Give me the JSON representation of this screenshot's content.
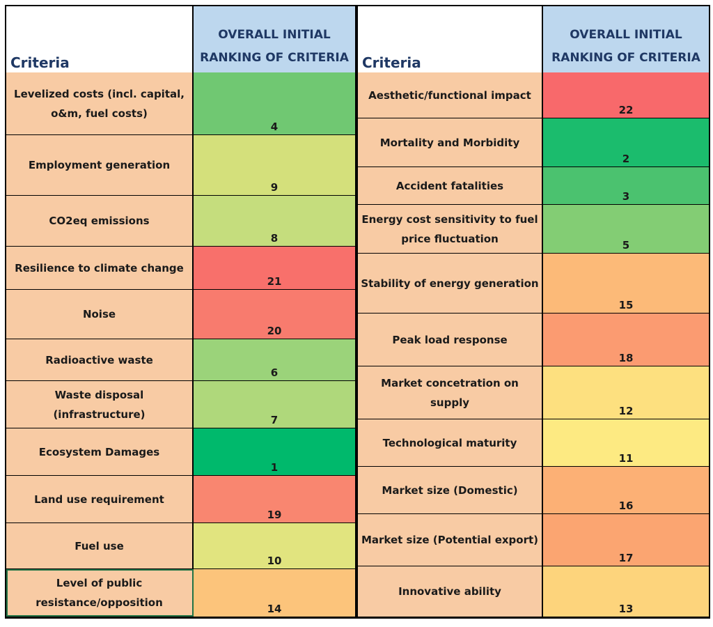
{
  "headers": {
    "criteria": "Criteria",
    "ranking": "OVERALL INITIAL RANKING OF CRITERIA"
  },
  "left_rows": [
    {
      "criteria": "Levelized costs (incl. capital, o&m, fuel costs)",
      "rank": "4",
      "color": "#70c872"
    },
    {
      "criteria": "Employment generation",
      "rank": "9",
      "color": "#d4e07b"
    },
    {
      "criteria": "CO2eq emissions",
      "rank": "8",
      "color": "#c5dd7d"
    },
    {
      "criteria": "Resilience to climate change",
      "rank": "21",
      "color": "#f8706b"
    },
    {
      "criteria": "Noise",
      "rank": "20",
      "color": "#f87b6e"
    },
    {
      "criteria": "Radioactive waste",
      "rank": "6",
      "color": "#9bd37a"
    },
    {
      "criteria": "Waste disposal (infrastructure)",
      "rank": "7",
      "color": "#afd87b"
    },
    {
      "criteria": "Ecosystem Damages",
      "rank": "1",
      "color": "#00b96c"
    },
    {
      "criteria": "Land use requirement",
      "rank": "19",
      "color": "#f98670"
    },
    {
      "criteria": "Fuel use",
      "rank": "10",
      "color": "#e1e47f"
    },
    {
      "criteria": "Level of public resistance/opposition",
      "rank": "14",
      "color": "#fcc47b"
    }
  ],
  "right_rows": [
    {
      "criteria": "Aesthetic/functional impact",
      "rank": "22",
      "color": "#f8696b"
    },
    {
      "criteria": "Mortality and Morbidity",
      "rank": "2",
      "color": "#1bbc6d"
    },
    {
      "criteria": "Accident fatalities",
      "rank": "3",
      "color": "#4bc26f"
    },
    {
      "criteria": "Energy cost sensitivity to fuel price fluctuation",
      "rank": "5",
      "color": "#83cd74"
    },
    {
      "criteria": "Stability of energy generation",
      "rank": "15",
      "color": "#fcba78"
    },
    {
      "criteria": "Peak load response",
      "rank": "18",
      "color": "#fb9b71"
    },
    {
      "criteria": "Market concetration on supply",
      "rank": "12",
      "color": "#fde07f"
    },
    {
      "criteria": "Technological maturity",
      "rank": "11",
      "color": "#fdea82"
    },
    {
      "criteria": "Market size (Domestic)",
      "rank": "16",
      "color": "#fcb075"
    },
    {
      "criteria": "Market size (Potential export)",
      "rank": "17",
      "color": "#fba571"
    },
    {
      "criteria": "Innovative ability",
      "rank": "13",
      "color": "#fdd47c"
    }
  ]
}
